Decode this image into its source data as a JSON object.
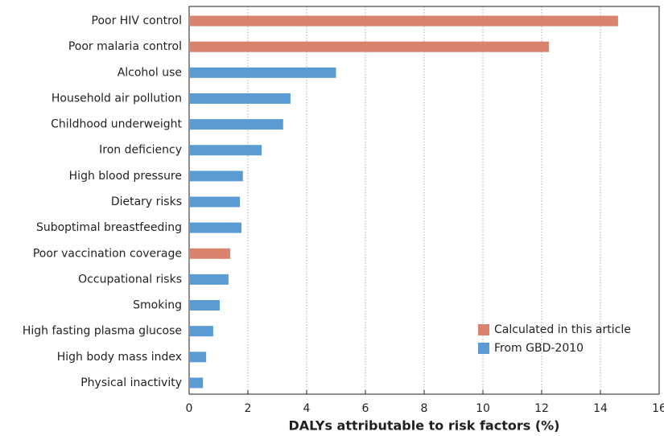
{
  "chart_data": {
    "type": "bar",
    "orientation": "horizontal",
    "xlabel": "DALYs attributable to risk factors (%)",
    "categories": [
      "Poor HIV control",
      "Poor malaria control",
      "Alcohol use",
      "Household air pollution",
      "Childhood underweight",
      "Iron deficiency",
      "High blood pressure",
      "Dietary risks",
      "Suboptimal breastfeeding",
      "Poor vaccination coverage",
      "Occupational risks",
      "Smoking",
      "High fasting plasma glucose",
      "High body mass index",
      "Physical inactivity"
    ],
    "series": [
      {
        "name": "Calculated in this article",
        "color": "#d9826e",
        "values": [
          14.6,
          12.25,
          null,
          null,
          null,
          null,
          null,
          null,
          null,
          1.4,
          null,
          null,
          null,
          null,
          null
        ]
      },
      {
        "name": "From GBD-2010",
        "color": "#5a9bd4",
        "values": [
          null,
          null,
          5.0,
          3.45,
          3.2,
          2.47,
          1.83,
          1.73,
          1.78,
          null,
          1.34,
          1.04,
          0.82,
          0.58,
          0.47
        ]
      }
    ],
    "xlim": [
      0,
      16
    ],
    "xticks": [
      0,
      2,
      4,
      6,
      8,
      10,
      12,
      14,
      16
    ],
    "grid": true,
    "legend": "lower right"
  }
}
